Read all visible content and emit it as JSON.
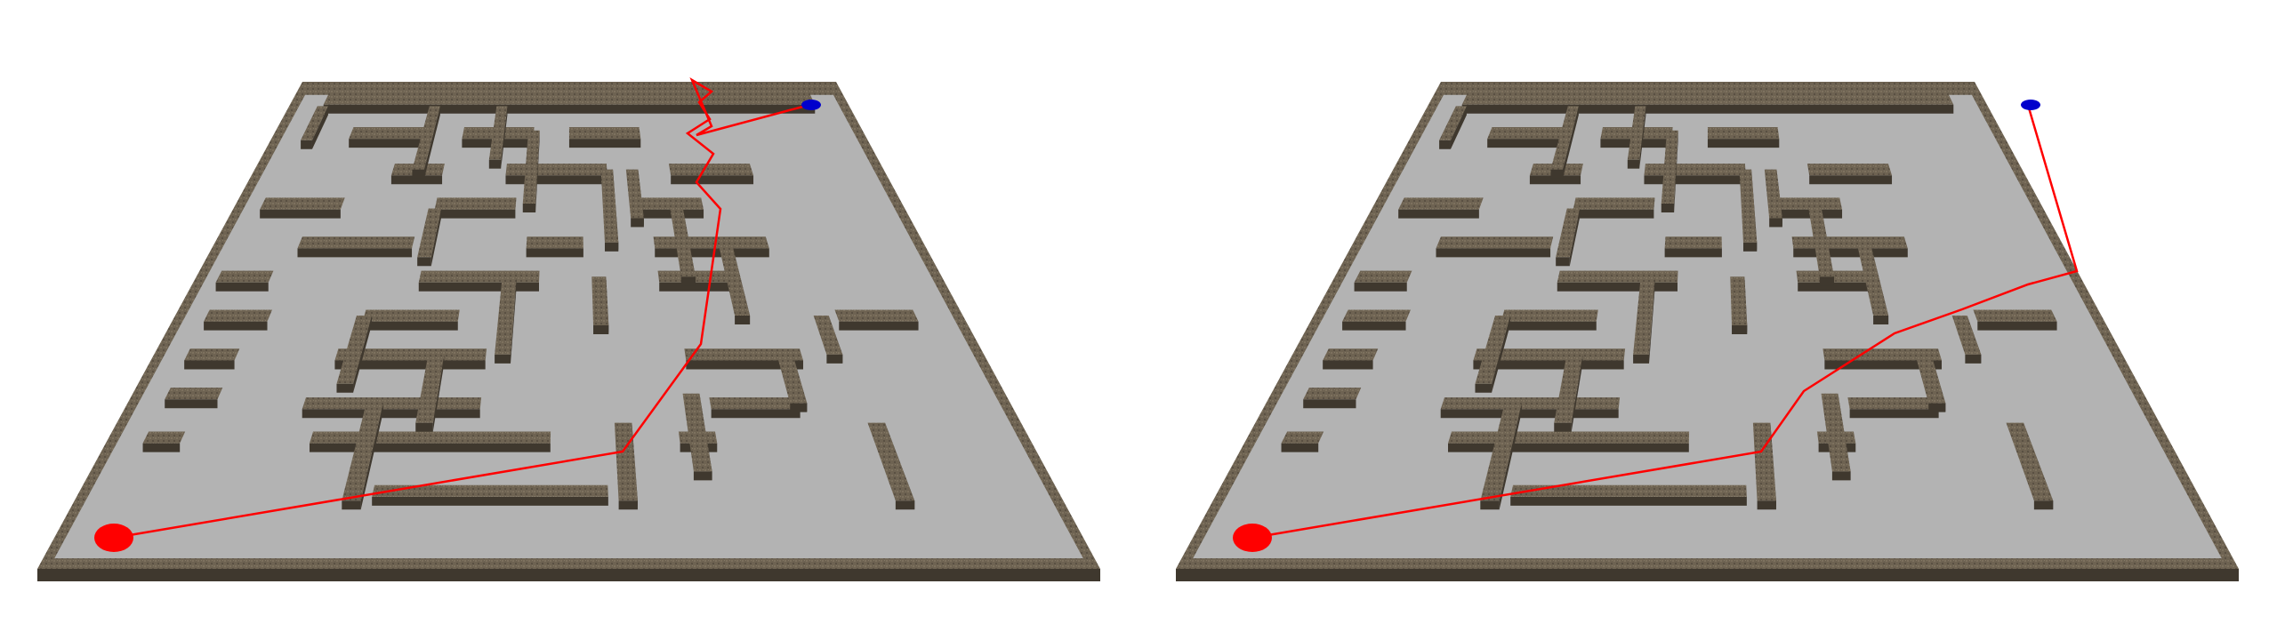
{
  "colors": {
    "background": "#ffffff",
    "floor": "#b3b3b3",
    "wall_top": "#6e6352",
    "wall_side": "#3f382e",
    "border": "#4a4236",
    "path": "#ff0000",
    "start_marker": "#ff0000",
    "goal_marker": "#0000cc"
  },
  "mazes": [
    {
      "id": "left",
      "solver": "left"
    },
    {
      "id": "right",
      "solver": "right"
    }
  ]
}
